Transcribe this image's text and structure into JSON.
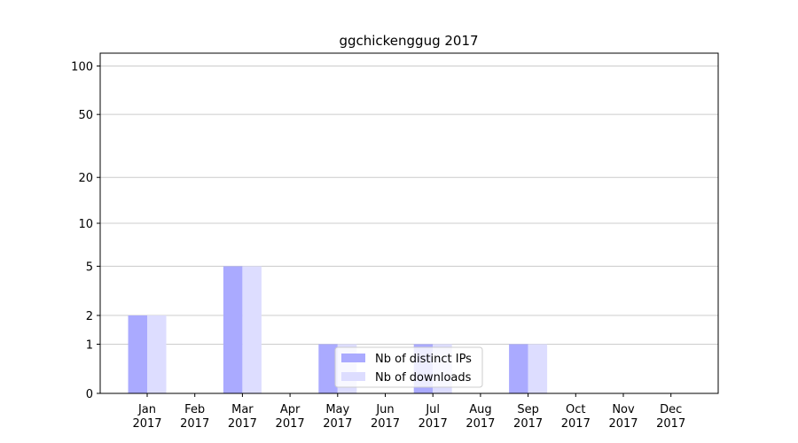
{
  "chart_data": {
    "type": "bar",
    "title": "ggchickenggug 2017",
    "categories": [
      "Jan 2017",
      "Feb 2017",
      "Mar 2017",
      "Apr 2017",
      "May 2017",
      "Jun 2017",
      "Jul 2017",
      "Aug 2017",
      "Sep 2017",
      "Oct 2017",
      "Nov 2017",
      "Dec 2017"
    ],
    "series": [
      {
        "name": "Nb of distinct IPs",
        "color": "#aaaaff",
        "values": [
          2,
          0,
          5,
          0,
          1,
          0,
          1,
          0,
          1,
          0,
          0,
          0
        ]
      },
      {
        "name": "Nb of downloads",
        "color": "#ddddff",
        "values": [
          2,
          0,
          5,
          0,
          1,
          0,
          1,
          0,
          1,
          0,
          0,
          0
        ]
      }
    ],
    "y_scale": "log1p",
    "ylim": [
      0,
      120
    ],
    "yticks": [
      0,
      1,
      2,
      5,
      10,
      20,
      50,
      100
    ],
    "grid": true,
    "legend": "lower center"
  }
}
